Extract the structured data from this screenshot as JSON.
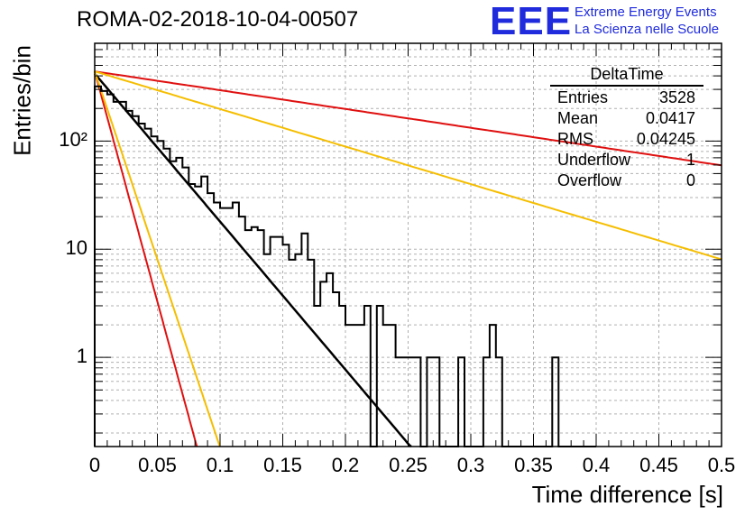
{
  "header": {
    "title": "ROMA-02-2018-10-04-00507",
    "logo_text": "EEE",
    "logo_line1": "Extreme Energy Events",
    "logo_line2": "La Scienza nelle Scuole"
  },
  "stats_box": {
    "name": "DeltaTime",
    "rows": [
      {
        "label": "Entries",
        "value": "3528"
      },
      {
        "label": "Mean",
        "value": "0.0417"
      },
      {
        "label": "RMS",
        "value": "0.04245"
      },
      {
        "label": "Underflow",
        "value": "1"
      },
      {
        "label": "Overflow",
        "value": "0"
      }
    ]
  },
  "colors": {
    "histogram": "#000000",
    "fit": "#000000",
    "red": "#e01010",
    "yellow": "#f5be00",
    "logo": "#1f2bdc"
  },
  "chart_data": {
    "type": "line",
    "title": "ROMA-02-2018-10-04-00507",
    "xlabel": "Time difference [s]",
    "ylabel": "Entries/bin",
    "xlim": [
      0,
      0.5
    ],
    "ylim": [
      0.15,
      800
    ],
    "yscale": "log",
    "grid": true,
    "xticks": [
      0,
      0.05,
      0.1,
      0.15,
      0.2,
      0.25,
      0.3,
      0.35,
      0.4,
      0.45,
      0.5
    ],
    "xtick_labels": [
      "0",
      "0.05",
      "0.1",
      "0.15",
      "0.2",
      "0.25",
      "0.3",
      "0.35",
      "0.4",
      "0.45",
      "0.5"
    ],
    "yticks": [
      1,
      10,
      100
    ],
    "ytick_labels": [
      "1",
      "10",
      "10²"
    ],
    "histogram": {
      "name": "DeltaTime",
      "bin_width": 0.005,
      "x_start": 0,
      "values": [
        320,
        290,
        270,
        230,
        230,
        190,
        170,
        145,
        130,
        110,
        100,
        85,
        65,
        70,
        57,
        40,
        38,
        47,
        33,
        27,
        24,
        24,
        27,
        20,
        15,
        16,
        15,
        9,
        13,
        13,
        11,
        8,
        9,
        14,
        8,
        3,
        5,
        6,
        4,
        3,
        2,
        2,
        2,
        3,
        0,
        3,
        2,
        2,
        1,
        1,
        1,
        1,
        0,
        1,
        1,
        0,
        0,
        0,
        1,
        0,
        0,
        0,
        1,
        2,
        1,
        0,
        0,
        0,
        0,
        0,
        0,
        0,
        0,
        1,
        0,
        0,
        0,
        0,
        0,
        0
      ]
    },
    "series": [
      {
        "name": "fit",
        "color": "#000000",
        "amplitude": 420,
        "slope": -31.5,
        "x_range": [
          0,
          0.33
        ]
      },
      {
        "name": "red-slow",
        "color": "#e01010",
        "amplitude": 440,
        "slope": -4.0,
        "x_range": [
          0,
          0.5
        ]
      },
      {
        "name": "yellow-slow",
        "color": "#f5be00",
        "amplitude": 440,
        "slope": -8.0,
        "x_range": [
          0,
          0.5
        ]
      },
      {
        "name": "red-fast",
        "color": "#e01010",
        "amplitude": 440,
        "slope": -98.0,
        "x_range": [
          0,
          0.1
        ]
      },
      {
        "name": "yellow-fast",
        "color": "#f5be00",
        "amplitude": 440,
        "slope": -80.0,
        "x_range": [
          0,
          0.12
        ]
      }
    ]
  }
}
